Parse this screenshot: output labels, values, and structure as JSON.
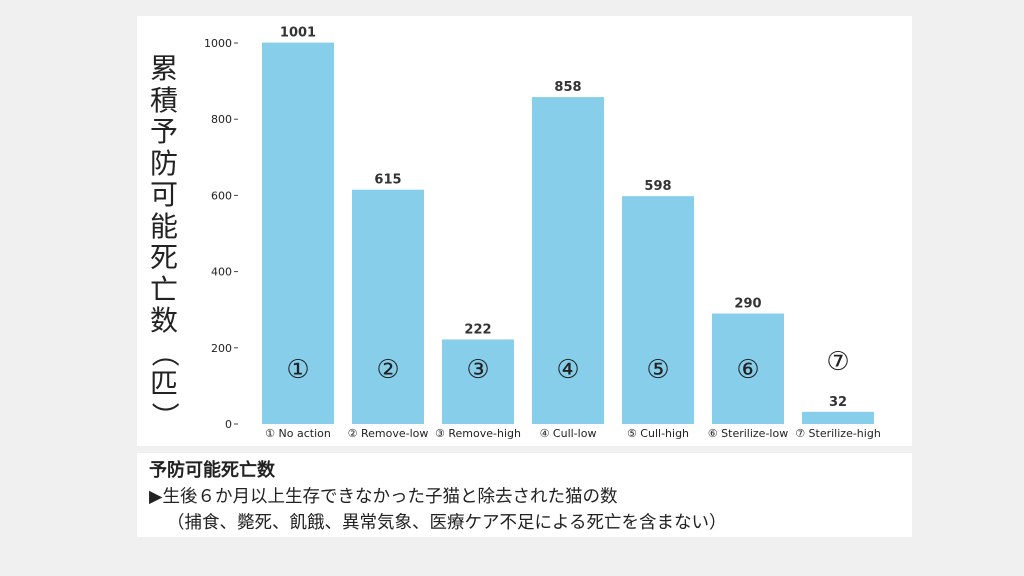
{
  "chart_data": {
    "type": "bar",
    "categories": [
      "① No action",
      "② Remove-low",
      "③ Remove-high",
      "④ Cull-low",
      "⑤ Cull-high",
      "⑥ Sterilize-low",
      "⑦ Sterilize-high"
    ],
    "values": [
      1001,
      615,
      222,
      858,
      598,
      290,
      32
    ],
    "bar_markers": [
      "①",
      "②",
      "③",
      "④",
      "⑤",
      "⑥",
      "⑦"
    ],
    "ylabel": "累積予防可能死亡数（匹）",
    "ylim": [
      0,
      1000
    ],
    "yticks": [
      0,
      200,
      400,
      600,
      800,
      1000
    ],
    "bar_color": "#87ceeb",
    "grid": false
  },
  "caption": {
    "title": "予防可能死亡数",
    "line1": "▶生後６か月以上生存できなかった子猫と除去された猫の数",
    "line2": "（捕食、斃死、飢餓、異常気象、医療ケア不足による死亡を含まない）"
  }
}
